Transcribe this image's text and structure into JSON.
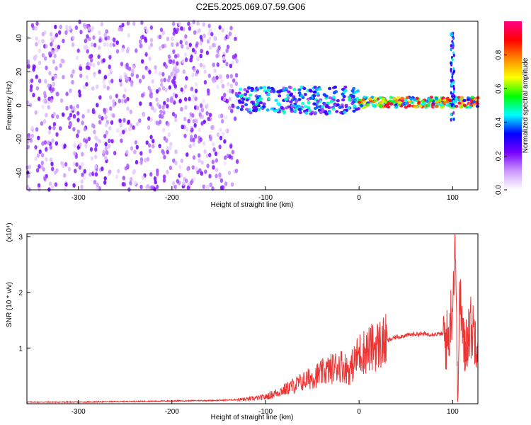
{
  "title": "C2E5.2025.069.07.59.G06",
  "chart_data": [
    {
      "type": "heatmap",
      "xlabel": "Height of straight line (km)",
      "ylabel": "Frequency (Hz)",
      "xlim": [
        -355,
        127
      ],
      "ylim": [
        -50,
        50
      ],
      "x_ticks": [
        -300,
        -200,
        -100,
        0,
        100
      ],
      "x_tick_labels": [
        "-300",
        "-200",
        "-100",
        "0",
        "100"
      ],
      "y_ticks": [
        -40,
        -20,
        0,
        20,
        40
      ],
      "y_tick_labels": [
        "-40",
        "-20",
        "0",
        "20",
        "40"
      ],
      "colorbar": {
        "label": "Normalized spectral amplitude",
        "range": [
          0,
          1
        ],
        "ticks": [
          0.0,
          0.2,
          0.4,
          0.6,
          0.8
        ],
        "tick_labels": [
          "0.0",
          "0.2",
          "0.4",
          "0.6",
          "0.8"
        ],
        "colors": [
          "#ffffff",
          "#cc99ff",
          "#7700ff",
          "#0000ff",
          "#00ffff",
          "#00ff00",
          "#ffff00",
          "#ff8800",
          "#ff0000",
          "#ff0088"
        ]
      },
      "features": [
        {
          "region": "noise",
          "x_range": [
            -355,
            -130
          ],
          "y_range": [
            -50,
            50
          ],
          "amplitude": 0.15
        },
        {
          "region": "band",
          "x_range": [
            -130,
            0
          ],
          "center_hz": 3,
          "half_width_hz": 8,
          "amplitude": 0.45
        },
        {
          "region": "band",
          "x_range": [
            0,
            127
          ],
          "center_hz": 2,
          "half_width_hz": 3,
          "amplitude": 0.9
        },
        {
          "region": "spike",
          "x": 100,
          "y_range": [
            -10,
            45
          ],
          "amplitude": 0.3
        }
      ],
      "grid": false
    },
    {
      "type": "line",
      "xlabel": "Height of straight line (km)",
      "ylabel": "SNR (10 * v/v)",
      "y_multiplier": "(x10⁴)",
      "xlim": [
        -355,
        127
      ],
      "ylim": [
        0,
        3.05
      ],
      "x_ticks": [
        -300,
        -200,
        -100,
        0,
        100
      ],
      "x_tick_labels": [
        "-300",
        "-200",
        "-100",
        "0",
        "100"
      ],
      "y_ticks": [
        1,
        2,
        3
      ],
      "y_tick_labels": [
        "1",
        "2",
        "3"
      ],
      "color": "#ee3333",
      "series": [
        {
          "x": [
            -355,
            -300,
            -250,
            -200,
            -150,
            -120,
            -100,
            -80,
            -60,
            -40,
            -20,
            -10,
            0,
            20,
            40,
            60,
            80,
            90,
            95,
            100,
            103,
            105,
            108,
            112,
            118,
            127
          ],
          "values": [
            0.03,
            0.03,
            0.04,
            0.05,
            0.06,
            0.08,
            0.12,
            0.25,
            0.4,
            0.55,
            0.7,
            0.6,
            0.9,
            1.05,
            1.2,
            1.25,
            1.25,
            1.25,
            1.1,
            1.85,
            3.05,
            0.2,
            2.0,
            0.9,
            1.4,
            1.2
          ]
        }
      ],
      "grid": false
    }
  ]
}
